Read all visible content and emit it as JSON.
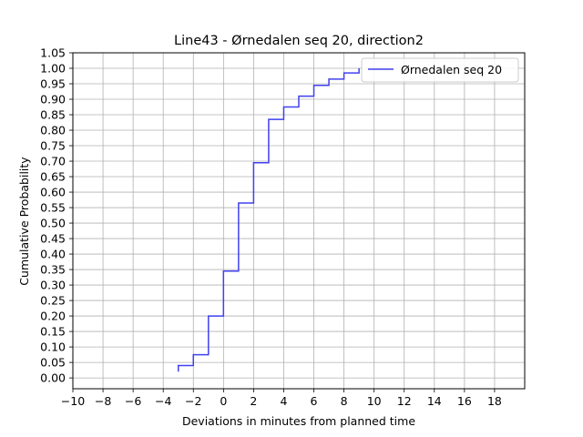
{
  "chart_data": {
    "type": "line",
    "step": true,
    "title": "Line43 - Ørnedalen seq 20, direction2",
    "xlabel": "Deviations in minutes from planned time",
    "ylabel": "Cumulative Probability",
    "xlim": [
      -10,
      20
    ],
    "ylim": [
      -0.035,
      1.05
    ],
    "x_ticks": [
      -10,
      -8,
      -6,
      -4,
      -2,
      0,
      2,
      4,
      6,
      8,
      10,
      12,
      14,
      16,
      18
    ],
    "x_tick_labels": [
      "−10",
      "−8",
      "−6",
      "−4",
      "−2",
      "0",
      "2",
      "4",
      "6",
      "8",
      "10",
      "12",
      "14",
      "16",
      "18"
    ],
    "y_ticks": [
      0,
      0.05,
      0.1,
      0.15,
      0.2,
      0.25,
      0.3,
      0.35,
      0.4,
      0.45,
      0.5,
      0.55,
      0.6,
      0.65,
      0.7,
      0.75,
      0.8,
      0.85,
      0.9,
      0.95,
      1.0,
      1.05
    ],
    "y_tick_labels": [
      "0.00",
      "0.05",
      "0.10",
      "0.15",
      "0.20",
      "0.25",
      "0.30",
      "0.35",
      "0.40",
      "0.45",
      "0.50",
      "0.55",
      "0.60",
      "0.65",
      "0.70",
      "0.75",
      "0.80",
      "0.85",
      "0.90",
      "0.95",
      "1.00",
      "1.05"
    ],
    "grid": true,
    "legend_position": "top-right",
    "series": [
      {
        "name": "Ørnedalen seq 20",
        "color": "#4040f0",
        "x": [
          -3,
          -2,
          -1,
          0,
          1,
          2,
          3,
          4,
          5,
          6,
          7,
          8,
          9
        ],
        "y": [
          0.04,
          0.075,
          0.2,
          0.345,
          0.565,
          0.695,
          0.835,
          0.875,
          0.91,
          0.945,
          0.965,
          0.985,
          1.0
        ]
      }
    ]
  }
}
